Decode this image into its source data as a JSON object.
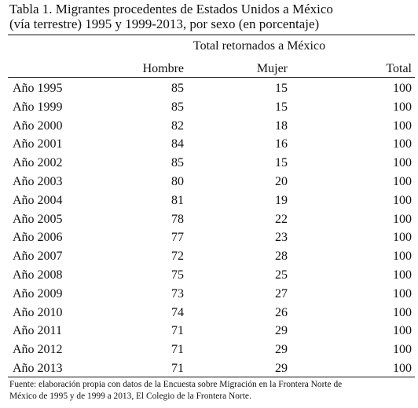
{
  "table": {
    "title_line1": "Tabla 1. Migrantes procedentes de Estados Unidos a México",
    "title_line2": "(vía terrestre) 1995 y 1999-2013, por sexo (en porcentaje)",
    "group_header": "Total retornados a México",
    "columns": {
      "hombre": "Hombre",
      "mujer": "Mujer",
      "total": "Total"
    },
    "rows": [
      {
        "year": "Año 1995",
        "hombre": "85",
        "mujer": "15",
        "total": "100"
      },
      {
        "year": "Año 1999",
        "hombre": "85",
        "mujer": "15",
        "total": "100"
      },
      {
        "year": "Año 2000",
        "hombre": "82",
        "mujer": "18",
        "total": "100"
      },
      {
        "year": "Año 2001",
        "hombre": "84",
        "mujer": "16",
        "total": "100"
      },
      {
        "year": "Año 2002",
        "hombre": "85",
        "mujer": "15",
        "total": "100"
      },
      {
        "year": "Año 2003",
        "hombre": "80",
        "mujer": "20",
        "total": "100"
      },
      {
        "year": "Año 2004",
        "hombre": "81",
        "mujer": "19",
        "total": "100"
      },
      {
        "year": "Año 2005",
        "hombre": "78",
        "mujer": "22",
        "total": "100"
      },
      {
        "year": "Año 2006",
        "hombre": "77",
        "mujer": "23",
        "total": "100"
      },
      {
        "year": "Año 2007",
        "hombre": "72",
        "mujer": "28",
        "total": "100"
      },
      {
        "year": "Año 2008",
        "hombre": "75",
        "mujer": "25",
        "total": "100"
      },
      {
        "year": "Año 2009",
        "hombre": "73",
        "mujer": "27",
        "total": "100"
      },
      {
        "year": "Año 2010",
        "hombre": "74",
        "mujer": "26",
        "total": "100"
      },
      {
        "year": "Año 2011",
        "hombre": "71",
        "mujer": "29",
        "total": "100"
      },
      {
        "year": "Año 2012",
        "hombre": "71",
        "mujer": "29",
        "total": "100"
      },
      {
        "year": "Año 2013",
        "hombre": "71",
        "mujer": "29",
        "total": "100"
      }
    ],
    "source_line1": "Fuente: elaboración propia con datos de la Encuesta sobre Migración en la Frontera Norte de",
    "source_line2": "México de 1995 y de 1999 a 2013, El Colegio de la Frontera Norte."
  }
}
